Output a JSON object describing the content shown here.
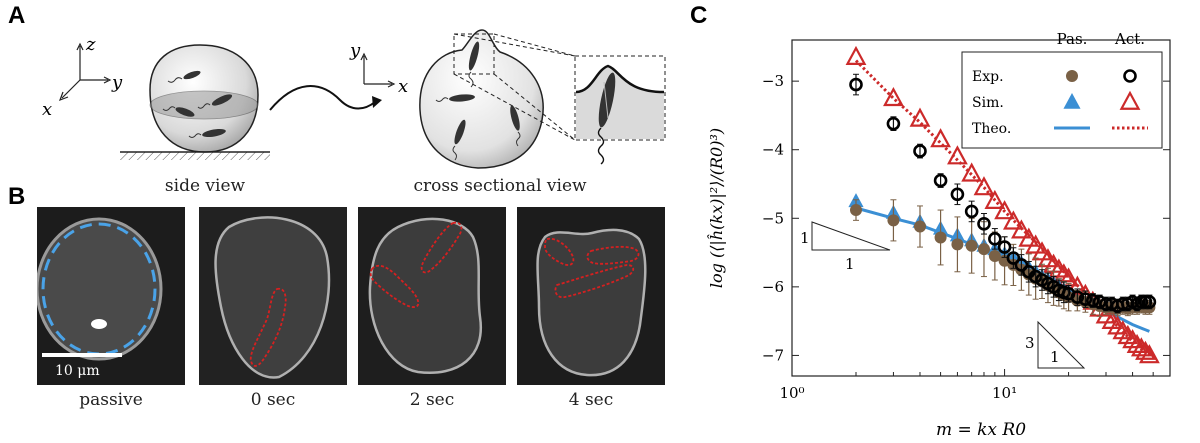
{
  "panels": {
    "a": {
      "letter": "A",
      "side_caption": "side view",
      "cross_caption": "cross sectional view",
      "axes_left": {
        "z": "z",
        "y": "y",
        "x": "x"
      },
      "axes_right": {
        "y": "y",
        "x": "x"
      }
    },
    "b": {
      "letter": "B",
      "scale_bar_label": "10 μm",
      "frames": [
        {
          "label": "passive"
        },
        {
          "label": "0 sec"
        },
        {
          "label": "2 sec"
        },
        {
          "label": "4 sec"
        }
      ]
    },
    "c": {
      "letter": "C"
    }
  },
  "colors": {
    "passive_fill": "#7a6146",
    "active_marker": "#000000",
    "sim_passive": "#3b8fd4",
    "sim_active": "#cc2a2a",
    "theory_passive": "#3b8fd4",
    "theory_active": "#cc2a2a",
    "outline_passive": "#4aa3e8",
    "outline_active": "#d62020"
  },
  "chart_data": {
    "type": "scatter",
    "xlabel": "m = kx R0",
    "ylabel": "log (⟨|ĥ(kx)|²⟩/(R0)³)",
    "xscale": "log",
    "xlim": [
      1,
      60
    ],
    "ylim": [
      -7.3,
      -2.4
    ],
    "x_ticks": [
      {
        "value": 1,
        "label": "10⁰"
      },
      {
        "value": 10,
        "label": "10¹"
      }
    ],
    "y_ticks": [
      {
        "value": -3,
        "label": "−3"
      },
      {
        "value": -4,
        "label": "−4"
      },
      {
        "value": -5,
        "label": "−5"
      },
      {
        "value": -6,
        "label": "−6"
      },
      {
        "value": -7,
        "label": "−7"
      }
    ],
    "legend": {
      "position": "top-right",
      "col_headers": [
        "Pas.",
        "Act."
      ],
      "row_labels": [
        "Exp.",
        "Sim.",
        "Theo."
      ]
    },
    "slope_annotations": [
      {
        "rise": "1",
        "run": "1"
      },
      {
        "rise": "3",
        "run": "1"
      }
    ],
    "series": [
      {
        "name": "Exp. Pas.",
        "marker": "filled-circle",
        "x": [
          2,
          3,
          4,
          5,
          6,
          7,
          8,
          9,
          10,
          11,
          12,
          13,
          14,
          15,
          16,
          17,
          18,
          19,
          20,
          22,
          24,
          26,
          28,
          30,
          32,
          34,
          36,
          38,
          40,
          42,
          44,
          46,
          48
        ],
        "y": [
          -4.88,
          -5.03,
          -5.12,
          -5.28,
          -5.38,
          -5.4,
          -5.45,
          -5.55,
          -5.62,
          -5.68,
          -5.75,
          -5.82,
          -5.88,
          -5.92,
          -5.98,
          -6.02,
          -6.08,
          -6.12,
          -6.15,
          -6.2,
          -6.22,
          -6.25,
          -6.28,
          -6.3,
          -6.3,
          -6.32,
          -6.3,
          -6.32,
          -6.3,
          -6.3,
          -6.28,
          -6.3,
          -6.3
        ],
        "err": [
          0.15,
          0.3,
          0.3,
          0.4,
          0.4,
          0.4,
          0.4,
          0.35,
          0.35,
          0.3,
          0.3,
          0.3,
          0.3,
          0.25,
          0.25,
          0.25,
          0.2,
          0.2,
          0.2,
          0.15,
          0.15,
          0.15,
          0.15,
          0.1,
          0.1,
          0.1,
          0.1,
          0.1,
          0.1,
          0.1,
          0.1,
          0.1,
          0.1
        ]
      },
      {
        "name": "Exp. Act.",
        "marker": "open-circle",
        "x": [
          2,
          3,
          4,
          5,
          6,
          7,
          8,
          9,
          10,
          11,
          12,
          13,
          14,
          15,
          16,
          17,
          18,
          19,
          20,
          22,
          24,
          26,
          28,
          30,
          32,
          34,
          36,
          38,
          40,
          42,
          44,
          46,
          48
        ],
        "y": [
          -3.05,
          -3.62,
          -4.02,
          -4.45,
          -4.65,
          -4.9,
          -5.08,
          -5.3,
          -5.42,
          -5.58,
          -5.68,
          -5.78,
          -5.85,
          -5.9,
          -5.95,
          -6.0,
          -6.05,
          -6.08,
          -6.1,
          -6.15,
          -6.18,
          -6.2,
          -6.22,
          -6.25,
          -6.25,
          -6.28,
          -6.25,
          -6.25,
          -6.22,
          -6.25,
          -6.22,
          -6.22,
          -6.22
        ],
        "err": [
          0.15,
          0.1,
          0.1,
          0.1,
          0.15,
          0.15,
          0.15,
          0.15,
          0.15,
          0.15,
          0.15,
          0.15,
          0.15,
          0.15,
          0.15,
          0.15,
          0.15,
          0.15,
          0.12,
          0.12,
          0.12,
          0.1,
          0.1,
          0.1,
          0.1,
          0.1,
          0.1,
          0.1,
          0.1,
          0.1,
          0.1,
          0.1,
          0.1
        ]
      },
      {
        "name": "Sim. Pas.",
        "marker": "filled-triangle",
        "x": [
          2,
          3,
          4,
          5,
          6,
          7,
          8,
          9,
          10,
          11,
          12,
          13,
          14,
          15,
          16,
          17,
          18,
          19,
          20
        ],
        "y": [
          -4.75,
          -4.92,
          -5.05,
          -5.15,
          -5.25,
          -5.32,
          -5.4,
          -5.45,
          -5.52,
          -5.58,
          -5.65,
          -5.72,
          -5.78,
          -5.85,
          -5.9,
          -5.95,
          -6.0,
          -6.05,
          -6.08
        ]
      },
      {
        "name": "Sim. Act.",
        "marker": "open-triangle",
        "x": [
          2,
          3,
          4,
          5,
          6,
          7,
          8,
          9,
          10,
          11,
          12,
          13,
          14,
          15,
          16,
          17,
          18,
          19,
          20,
          22,
          24,
          26,
          28,
          30,
          32,
          34,
          36,
          38,
          40,
          42,
          44,
          46,
          48
        ],
        "y": [
          -2.65,
          -3.25,
          -3.55,
          -3.85,
          -4.1,
          -4.35,
          -4.55,
          -4.75,
          -4.9,
          -5.05,
          -5.18,
          -5.3,
          -5.4,
          -5.5,
          -5.6,
          -5.68,
          -5.75,
          -5.82,
          -5.88,
          -6.0,
          -6.12,
          -6.22,
          -6.32,
          -6.42,
          -6.5,
          -6.58,
          -6.65,
          -6.72,
          -6.78,
          -6.85,
          -6.9,
          -6.95,
          -7.0
        ]
      },
      {
        "name": "Theo. Pas.",
        "marker": "solid-line",
        "x": [
          2,
          3,
          4,
          6,
          8,
          10,
          14,
          20,
          30,
          40,
          48
        ],
        "y": [
          -4.85,
          -5.0,
          -5.1,
          -5.3,
          -5.45,
          -5.55,
          -5.8,
          -6.05,
          -6.35,
          -6.55,
          -6.65
        ]
      },
      {
        "name": "Theo. Act.",
        "marker": "dotted-line",
        "x": [
          2,
          3,
          4,
          6,
          8,
          10,
          14,
          20,
          30,
          40,
          48
        ],
        "y": [
          -2.7,
          -3.25,
          -3.6,
          -4.15,
          -4.55,
          -4.9,
          -5.35,
          -5.85,
          -6.4,
          -6.8,
          -7.0
        ]
      }
    ]
  }
}
